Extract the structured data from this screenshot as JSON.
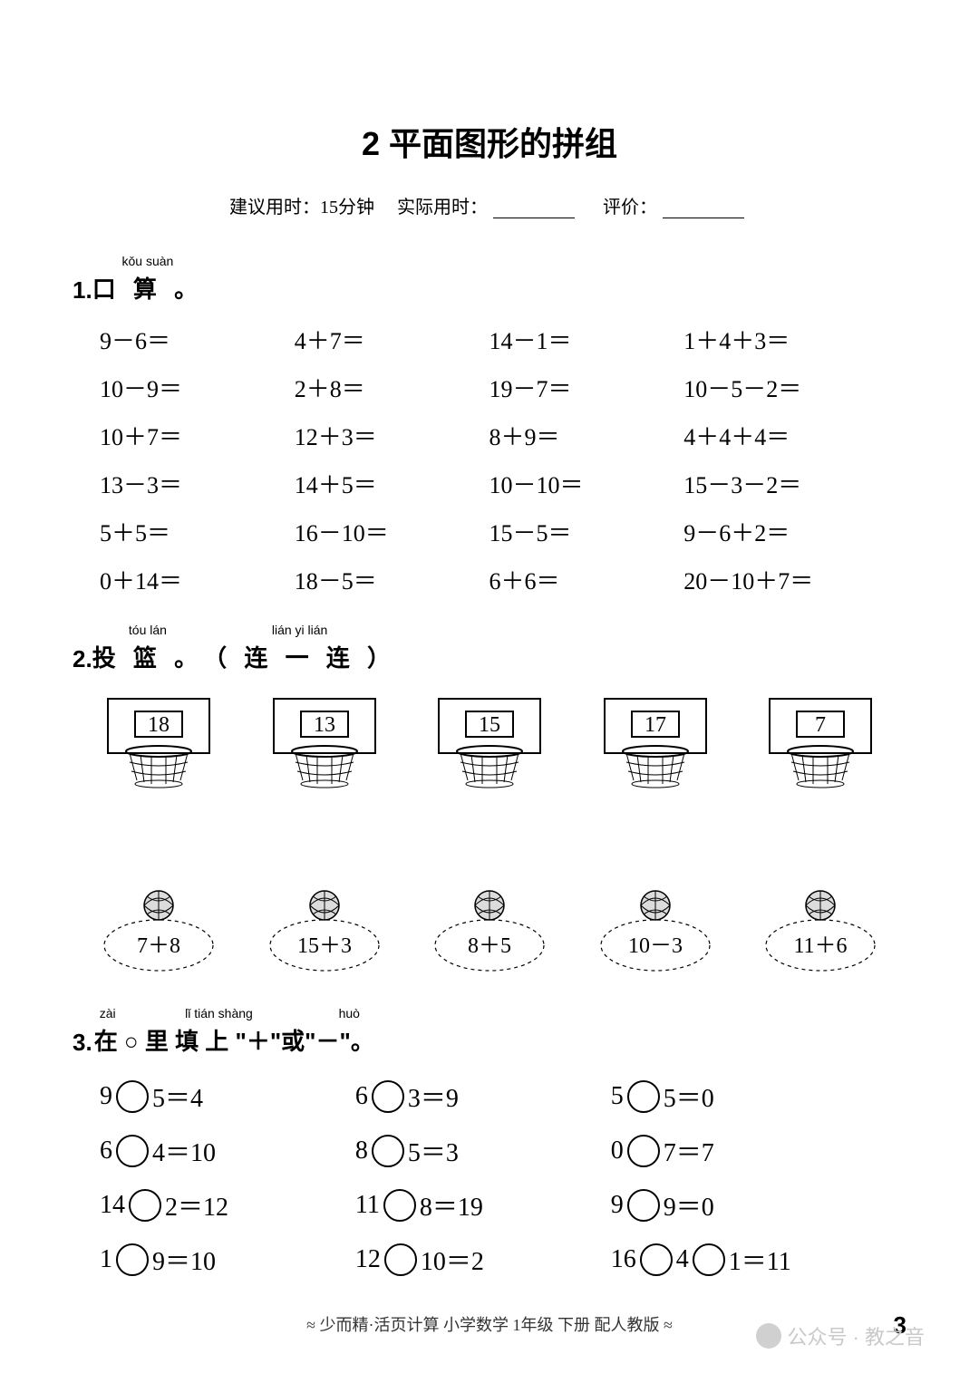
{
  "title": "2  平面图形的拼组",
  "meta": {
    "suggest_label": "建议用时：",
    "suggest_time": "15分钟",
    "actual_label": "实际用时：",
    "score_label": "评价："
  },
  "s1": {
    "num": "1.",
    "pinyin": "kǒu suàn",
    "label": "口 算 。",
    "items": [
      [
        "9－6＝",
        "4＋7＝",
        "14－1＝",
        "1＋4＋3＝"
      ],
      [
        "10－9＝",
        "2＋8＝",
        "19－7＝",
        "10－5－2＝"
      ],
      [
        "10＋7＝",
        "12＋3＝",
        "8＋9＝",
        "4＋4＋4＝"
      ],
      [
        "13－3＝",
        "14＋5＝",
        "10－10＝",
        "15－3－2＝"
      ],
      [
        "5＋5＝",
        "16－10＝",
        "15－5＝",
        "9－6＋2＝"
      ],
      [
        "0＋14＝",
        "18－5＝",
        "6＋6＝",
        "20－10＋7＝"
      ]
    ]
  },
  "s2": {
    "num": "2.",
    "pinyin_parts": [
      "tóu lán",
      "lián yi lián"
    ],
    "label_parts": [
      "投 篮 。",
      "（ 连 一 连 ）"
    ],
    "hoops": [
      "18",
      "13",
      "15",
      "17",
      "7"
    ],
    "balls": [
      "7＋8",
      "15＋3",
      "8＋5",
      "10－3",
      "11＋6"
    ]
  },
  "s3": {
    "num": "3.",
    "pinyin_parts": [
      "zài",
      "lǐ  tián shàng",
      "huò"
    ],
    "label": "在 ○ 里 填  上 \"＋\"或\"－\"。",
    "rows": [
      [
        {
          "parts": [
            "9",
            "○",
            "5＝4"
          ]
        },
        {
          "parts": [
            "6",
            "○",
            "3＝9"
          ]
        },
        {
          "parts": [
            "5",
            "○",
            "5＝0"
          ]
        }
      ],
      [
        {
          "parts": [
            "6",
            "○",
            "4＝10"
          ]
        },
        {
          "parts": [
            "8",
            "○",
            "5＝3"
          ]
        },
        {
          "parts": [
            "0",
            "○",
            "7＝7"
          ]
        }
      ],
      [
        {
          "parts": [
            "14",
            "○",
            "2＝12"
          ]
        },
        {
          "parts": [
            "11",
            "○",
            "8＝19"
          ]
        },
        {
          "parts": [
            "9",
            "○",
            "9＝0"
          ]
        }
      ],
      [
        {
          "parts": [
            "1",
            "○",
            "9＝10"
          ]
        },
        {
          "parts": [
            "12",
            "○",
            "10＝2"
          ]
        },
        {
          "parts": [
            "16",
            "○",
            "4",
            "○",
            "1＝11"
          ]
        }
      ]
    ]
  },
  "footer": {
    "text": "≈  少而精·活页计算    小学数学    1年级    下册    配人教版  ≈",
    "page": "3"
  },
  "watermark": "公众号 · 教之音",
  "style": {
    "page_bg": "#ffffff",
    "text_color": "#000000",
    "title_size": 36,
    "body_size": 26,
    "circle_border": "#000000",
    "hoop_stroke": "#000000",
    "ball_stroke": "#000000",
    "dash_stroke": "#000000"
  }
}
